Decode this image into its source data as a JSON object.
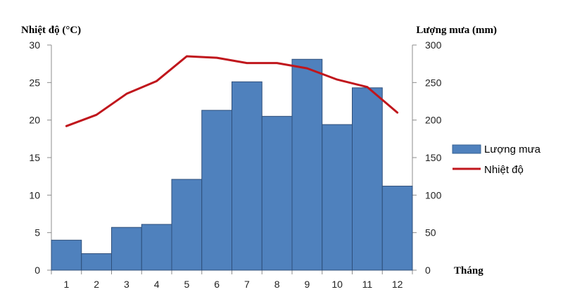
{
  "chart_data": {
    "type": "bar",
    "categories": [
      "1",
      "2",
      "3",
      "4",
      "5",
      "6",
      "7",
      "8",
      "9",
      "10",
      "11",
      "12"
    ],
    "series": [
      {
        "name": "Lượng mưa",
        "chart": "bar",
        "axis": "right",
        "color": "#4f81bd",
        "values": [
          40,
          22,
          57,
          61,
          121,
          213,
          251,
          205,
          281,
          194,
          243,
          112
        ]
      },
      {
        "name": "Nhiệt độ",
        "chart": "line",
        "axis": "left",
        "color": "#c0161c",
        "values": [
          19.2,
          20.7,
          23.5,
          25.2,
          28.5,
          28.3,
          27.6,
          27.6,
          26.9,
          25.4,
          24.4,
          21.0
        ]
      }
    ],
    "ylabel_left": "Nhiệt độ (°C)",
    "ylabel_right": "Lượng mưa (mm)",
    "xlabel": "Tháng",
    "ylim_left": [
      0,
      30
    ],
    "ylim_right": [
      0,
      300
    ],
    "yticks_left": [
      "0",
      "5",
      "10",
      "15",
      "20",
      "25",
      "30"
    ],
    "yticks_right": [
      "0",
      "50",
      "100",
      "150",
      "200",
      "250",
      "300"
    ],
    "grid": false,
    "legend": "right"
  }
}
